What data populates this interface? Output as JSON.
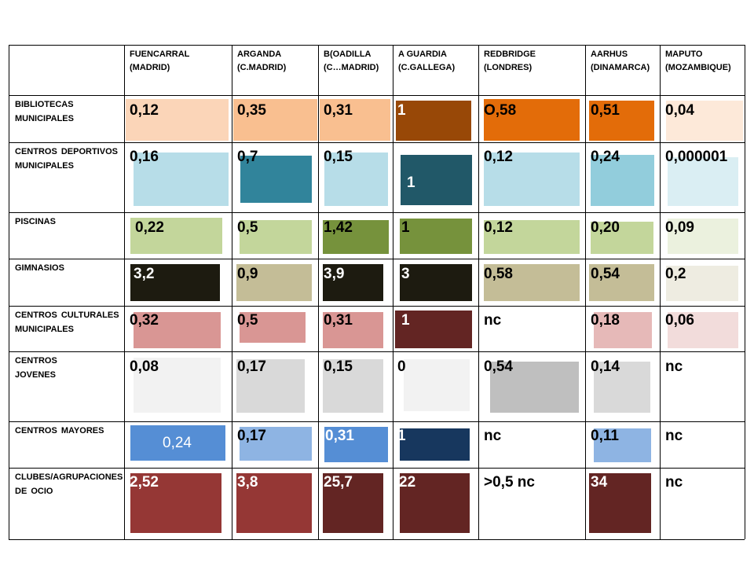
{
  "headers": [
    {
      "l1": "FUENCARRAL",
      "l2": "(MADRID)"
    },
    {
      "l1": "ARGANDA",
      "l2": "(C.MADRID)"
    },
    {
      "l1": "B(OADILLA",
      "l2": "(C…MADRID)"
    },
    {
      "l1": "A GUARDIA",
      "l2": "(C.GALLEGA)"
    },
    {
      "l1": "REDBRIDGE",
      "l2": "(LONDRES)"
    },
    {
      "l1": "AARHUS",
      "l2": "(DINAMARCA)"
    },
    {
      "l1": "MAPUTO",
      "l2": "(MOZAMBIQUE)"
    }
  ],
  "rows": [
    {
      "l1": "BIBLIOTECAS",
      "l2": "MUNICIPALES",
      "values": [
        "0,12",
        "0,35",
        "0,31",
        "1",
        "O,58",
        "0,51",
        "0,04"
      ],
      "colors": [
        "#fbd5b8",
        "#f9bf90",
        "#f9bf90",
        "#984807",
        "#e36c09",
        "#e36c09",
        "#fde9d9"
      ]
    },
    {
      "l1": "CENTROS DEPORTIVOS",
      "l2": "MUNICIPALES",
      "values": [
        "0,16",
        "0,7",
        "0,15",
        "1",
        "0,12",
        "0,24",
        "0,000001"
      ],
      "colors": [
        "#b7dde8",
        "#31849b",
        "#b7dde8",
        "#215868",
        "#b7dde8",
        "#92cddc",
        "#daeef3"
      ]
    },
    {
      "l1": "PISCINAS",
      "l2": "",
      "values": [
        "0,22",
        "0,5",
        "1,42",
        "1",
        "0,12",
        "0,20",
        "0,09"
      ],
      "colors": [
        "#c3d69b",
        "#c3d69b",
        "#76923c",
        "#76923c",
        "#c3d69b",
        "#c3d69b",
        "#ebf1de"
      ]
    },
    {
      "l1": "GIMNASIOS",
      "l2": "",
      "values": [
        "3,2",
        "0,9",
        "3,9",
        "3",
        "0,58",
        "0,54",
        "0,2"
      ],
      "colors": [
        "#1d1b10",
        "#c4bd97",
        "#1d1b10",
        "#1d1b10",
        "#c4bd97",
        "#c4bd97",
        "#eeece1"
      ]
    },
    {
      "l1": "CENTROS CULTURALES",
      "l2": "MUNICIPALES",
      "values": [
        "0,32",
        "0,5",
        "0,31",
        "1",
        "nc",
        "0,18",
        "0,06"
      ],
      "colors": [
        "#d99694",
        "#d99694",
        "#d99694",
        "#632523",
        "",
        "#e6b9b8",
        "#f2dcdb"
      ]
    },
    {
      "l1": "CENTROS",
      "l2": "JOVENES",
      "values": [
        "0,08",
        "0,17",
        "0,15",
        "0",
        "0,54",
        "0,14",
        "nc"
      ],
      "colors": [
        "#f2f2f2",
        "#d9d9d9",
        "#d9d9d9",
        "#f2f2f2",
        "#bfbfbf",
        "#d9d9d9",
        ""
      ]
    },
    {
      "l1": "CENTROS  MAYORES",
      "l2": "",
      "values": [
        "0,24",
        "0,17",
        "0,31",
        "1",
        "nc",
        "0,11",
        "nc"
      ],
      "colors": [
        "#558ed5",
        "#8eb4e3",
        "#558ed5",
        "#17375e",
        "",
        "#8eb4e3",
        ""
      ]
    },
    {
      "l1": "CLUBES/AGRUPACIONES",
      "l2": "DE OCIO",
      "values": [
        "2,52",
        "3,8",
        "25,7",
        "22",
        ">0,5 nc",
        "34",
        "nc"
      ],
      "colors": [
        "#953735",
        "#953735",
        "#632523",
        "#632523",
        "",
        "#632523",
        ""
      ]
    }
  ]
}
